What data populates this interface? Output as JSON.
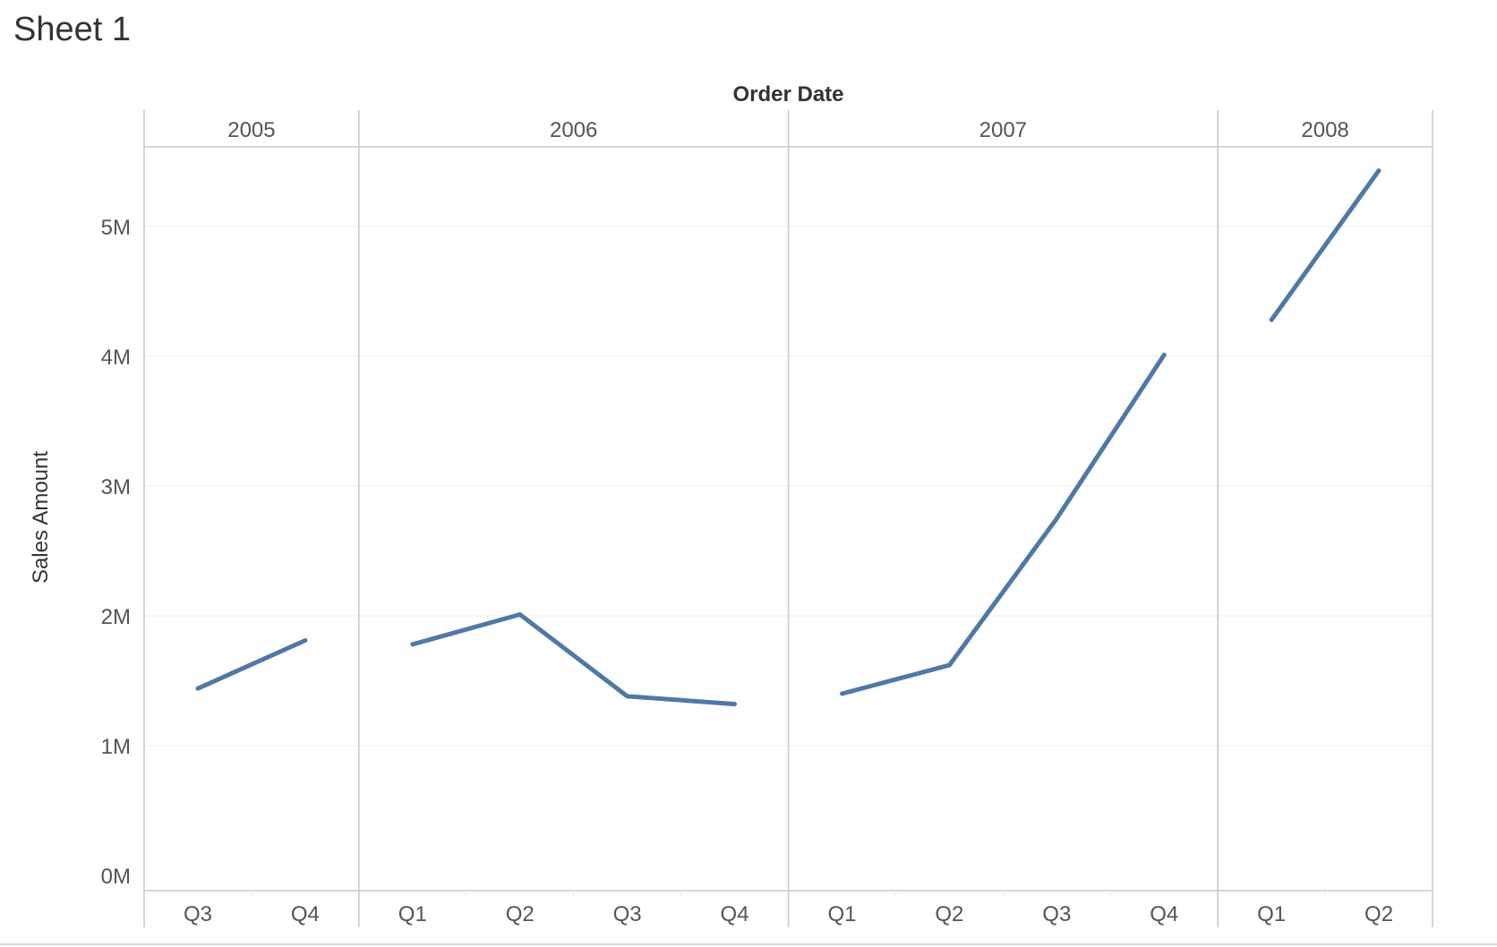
{
  "sheet": {
    "title": "Sheet 1"
  },
  "colors": {
    "line": "#4e79a7",
    "grid": "#ececec",
    "divider": "#c8c8c8",
    "tick_text": "#555555",
    "label_text": "#333333"
  },
  "chart_data": {
    "type": "line",
    "title": "",
    "xlabel": "Order Date",
    "ylabel": "Sales Amount",
    "ylim": [
      0,
      5800000
    ],
    "y_ticks": [
      {
        "value": 0,
        "label": "0M"
      },
      {
        "value": 1000000,
        "label": "1M"
      },
      {
        "value": 2000000,
        "label": "2M"
      },
      {
        "value": 3000000,
        "label": "3M"
      },
      {
        "value": 4000000,
        "label": "4M"
      },
      {
        "value": 5000000,
        "label": "5M"
      }
    ],
    "grid": true,
    "years": [
      {
        "year": "2005",
        "quarters": [
          "Q3",
          "Q4"
        ],
        "values": [
          1440000,
          1810000
        ]
      },
      {
        "year": "2006",
        "quarters": [
          "Q1",
          "Q2",
          "Q3",
          "Q4"
        ],
        "values": [
          1780000,
          2010000,
          1380000,
          1320000
        ]
      },
      {
        "year": "2007",
        "quarters": [
          "Q1",
          "Q2",
          "Q3",
          "Q4"
        ],
        "values": [
          1400000,
          1620000,
          2750000,
          4010000
        ]
      },
      {
        "year": "2008",
        "quarters": [
          "Q1",
          "Q2"
        ],
        "values": [
          4280000,
          5430000
        ]
      }
    ]
  }
}
